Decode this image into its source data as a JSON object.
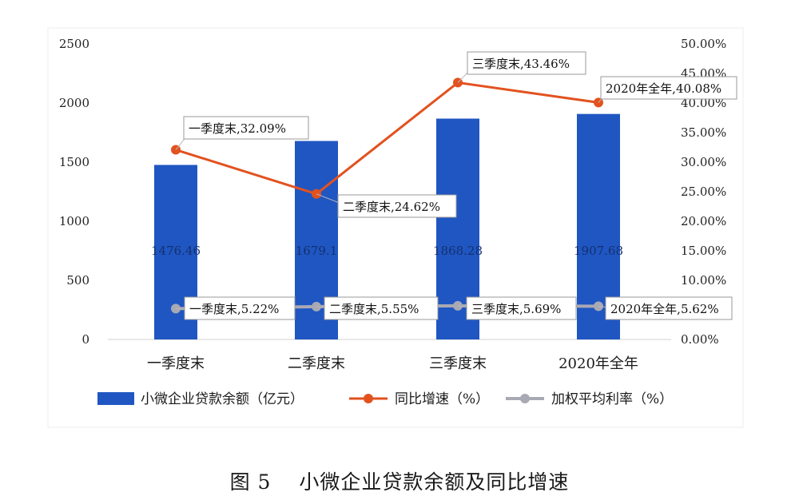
{
  "chart_data": {
    "type": "bar",
    "categories": [
      "一季度末",
      "二季度末",
      "三季度末",
      "2020年全年"
    ],
    "left_axis": {
      "ticks": [
        0,
        500,
        1000,
        1500,
        2000,
        2500
      ],
      "range": [
        0,
        2500
      ]
    },
    "right_axis": {
      "ticks": [
        "0.00%",
        "5.00%",
        "10.00%",
        "15.00%",
        "20.00%",
        "25.00%",
        "30.00%",
        "35.00%",
        "40.00%",
        "45.00%",
        "50.00%"
      ],
      "range": [
        0,
        50
      ]
    },
    "series": [
      {
        "name": "小微企业贷款余额（亿元）",
        "type": "bar",
        "axis": "left",
        "color": "#1f56c2",
        "values": [
          1476.46,
          1679.1,
          1868.28,
          1907.68
        ],
        "labels": [
          "1476.46",
          "1679.1",
          "1868.28",
          "1907.68"
        ]
      },
      {
        "name": "同比增速（%）",
        "type": "line",
        "axis": "right",
        "color": "#e2521f",
        "values": [
          32.09,
          24.62,
          43.46,
          40.08
        ],
        "labels": [
          "一季度末,32.09%",
          "二季度末,24.62%",
          "三季度末,43.46%",
          "2020年全年,40.08%"
        ]
      },
      {
        "name": "加权平均利率（%）",
        "type": "line",
        "axis": "right",
        "color": "#a9a9b4",
        "values": [
          5.22,
          5.55,
          5.69,
          5.62
        ],
        "labels": [
          "一季度末,5.22%",
          "二季度末,5.55%",
          "三季度末,5.69%",
          "2020年全年,5.62%"
        ]
      }
    ],
    "legend_position": "bottom",
    "grid": false
  },
  "caption": "图 5　 小微企业贷款余额及同比增速"
}
